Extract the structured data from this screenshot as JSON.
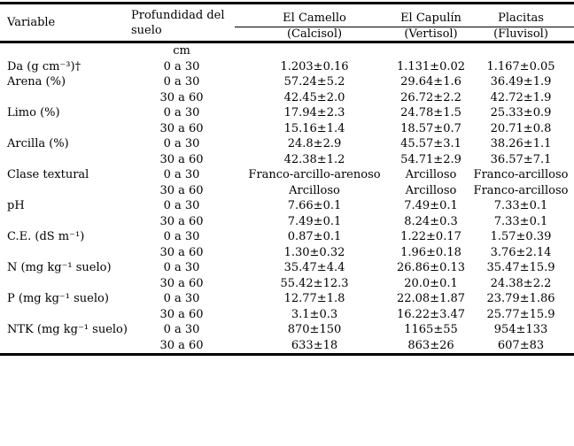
{
  "table": {
    "header": {
      "variable_label": "Variable",
      "depth_label": "Profundidad del suelo",
      "sites": [
        {
          "name": "El Camello",
          "soil_type": "(Calcisol)"
        },
        {
          "name": "El Capulín",
          "soil_type": "(Vertisol)"
        },
        {
          "name": "Placitas",
          "soil_type": "(Fluvisol)"
        }
      ]
    },
    "unit_row": {
      "depth_unit": "cm"
    },
    "rows": [
      {
        "variable": "Da (g cm⁻³)†",
        "depth": "0 a 30",
        "values": [
          "1.203±0.16",
          "1.131±0.02",
          "1.167±0.05"
        ]
      },
      {
        "variable": "Arena (%)",
        "depth": "0 a 30",
        "values": [
          "57.24±5.2",
          "29.64±1.6",
          "36.49±1.9"
        ]
      },
      {
        "variable": "",
        "depth": "30 a 60",
        "values": [
          "42.45±2.0",
          "26.72±2.2",
          "42.72±1.9"
        ]
      },
      {
        "variable": "Limo (%)",
        "depth": "0 a 30",
        "values": [
          "17.94±2.3",
          "24.78±1.5",
          "25.33±0.9"
        ]
      },
      {
        "variable": "",
        "depth": "30 a 60",
        "values": [
          "15.16±1.4",
          "18.57±0.7",
          "20.71±0.8"
        ]
      },
      {
        "variable": "Arcilla (%)",
        "depth": "0 a 30",
        "values": [
          "24.8±2.9",
          "45.57±3.1",
          "38.26±1.1"
        ]
      },
      {
        "variable": "",
        "depth": "30 a 60",
        "values": [
          "42.38±1.2",
          "54.71±2.9",
          "36.57±7.1"
        ]
      },
      {
        "variable": "Clase textural",
        "depth": "0 a 30",
        "values": [
          "Franco-arcillo-arenoso",
          "Arcilloso",
          "Franco-arcilloso"
        ]
      },
      {
        "variable": "",
        "depth": "30 a 60",
        "values": [
          "Arcilloso",
          "Arcilloso",
          "Franco-arcilloso"
        ]
      },
      {
        "variable": "pH",
        "depth": "0 a 30",
        "values": [
          "7.66±0.1",
          "7.49±0.1",
          "7.33±0.1"
        ]
      },
      {
        "variable": "",
        "depth": "30 a 60",
        "values": [
          "7.49±0.1",
          "8.24±0.3",
          "7.33±0.1"
        ]
      },
      {
        "variable": "C.E. (dS m⁻¹)",
        "depth": "0 a 30",
        "values": [
          "0.87±0.1",
          "1.22±0.17",
          "1.57±0.39"
        ]
      },
      {
        "variable": "",
        "depth": "30 a 60",
        "values": [
          "1.30±0.32",
          "1.96±0.18",
          "3.76±2.14"
        ]
      },
      {
        "variable": "N (mg kg⁻¹ suelo)",
        "depth": "0 a 30",
        "values": [
          "35.47±4.4",
          "26.86±0.13",
          "35.47±15.9"
        ]
      },
      {
        "variable": "",
        "depth": "30 a 60",
        "values": [
          "55.42±12.3",
          "20.0±0.1",
          "24.38±2.2"
        ]
      },
      {
        "variable": "P (mg kg⁻¹ suelo)",
        "depth": "0 a 30",
        "values": [
          "12.77±1.8",
          "22.08±1.87",
          "23.79±1.86"
        ]
      },
      {
        "variable": "",
        "depth": "30 a 60",
        "values": [
          "3.1±0.3",
          "16.22±3.47",
          "25.77±15.9"
        ]
      },
      {
        "variable": "NTK (mg kg⁻¹ suelo)",
        "depth": "0 a 30",
        "values": [
          "870±150",
          "1165±55",
          "954±133"
        ]
      },
      {
        "variable": "",
        "depth": "30 a 60",
        "values": [
          "633±18",
          "863±26",
          "607±83"
        ]
      }
    ]
  }
}
